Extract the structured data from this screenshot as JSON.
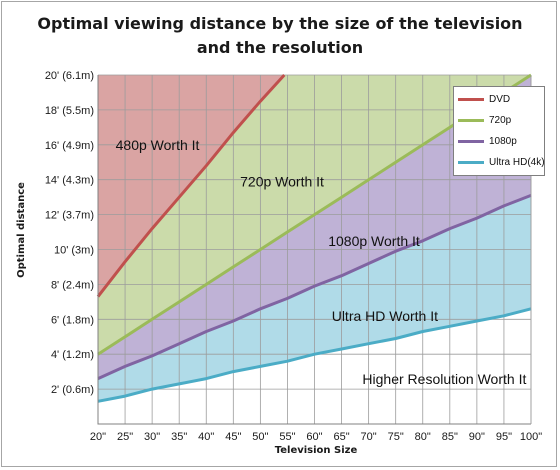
{
  "chart_data": {
    "type": "area",
    "title_line1": "Optimal viewing distance by the size of the television",
    "title_line2": "and the resolution",
    "xlabel": "Television  Size",
    "ylabel": "Optimal distance",
    "x_ticks": [
      "20\"",
      "25\"",
      "30\"",
      "35\"",
      "40\"",
      "45\"",
      "50\"",
      "55\"",
      "60\"",
      "65\"",
      "70\"",
      "75\"",
      "80\"",
      "85\"",
      "90\"",
      "95\"",
      "100\""
    ],
    "x": [
      20,
      25,
      30,
      35,
      40,
      45,
      50,
      55,
      60,
      65,
      70,
      75,
      80,
      85,
      90,
      95,
      100
    ],
    "xlim": [
      20,
      100
    ],
    "y_ticks": [
      "2' (0.6m)",
      "4' (1.2m)",
      "6' (1.8m)",
      "8' (2.4m)",
      "10' (3m)",
      "12' (3.7m)",
      "14' (4.3m)",
      "16' (4.9m)",
      "18' (5.5m)",
      "20' (6.1m)"
    ],
    "ylim": [
      0,
      20
    ],
    "series": [
      {
        "name": "DVD",
        "color": "#c0504d",
        "fill": "#daa4a3",
        "values": [
          7.3,
          9.3,
          11.2,
          13.0,
          14.8,
          16.7,
          18.5,
          20.2,
          null,
          null,
          null,
          null,
          null,
          null,
          null,
          null,
          null
        ]
      },
      {
        "name": "720p",
        "color": "#9bbb59",
        "fill": "#cbdbaa",
        "values": [
          4.0,
          5.0,
          6.0,
          7.0,
          8.0,
          9.0,
          10.0,
          11.0,
          12.0,
          13.0,
          14.0,
          15.0,
          16.0,
          17.0,
          18.0,
          19.0,
          20.0
        ]
      },
      {
        "name": "1080p",
        "color": "#8064a2",
        "fill": "#bfb2d6",
        "values": [
          2.6,
          3.3,
          3.9,
          4.6,
          5.3,
          5.9,
          6.6,
          7.2,
          7.9,
          8.5,
          9.2,
          9.9,
          10.5,
          11.2,
          11.8,
          12.5,
          13.1
        ]
      },
      {
        "name": "Ultra HD(4k)",
        "color": "#4bacc6",
        "fill": "#b0dbe8",
        "values": [
          1.3,
          1.6,
          2.0,
          2.3,
          2.6,
          3.0,
          3.3,
          3.6,
          4.0,
          4.3,
          4.6,
          4.9,
          5.3,
          5.6,
          5.9,
          6.2,
          6.6
        ]
      }
    ],
    "region_labels": [
      {
        "text": "480p Worth It",
        "x": 31,
        "y": 15.7
      },
      {
        "text": "720p Worth It",
        "x": 54,
        "y": 13.6
      },
      {
        "text": "1080p Worth It",
        "x": 71,
        "y": 10.2
      },
      {
        "text": "Ultra HD Worth It",
        "x": 73,
        "y": 5.9
      },
      {
        "text": "Higher Resolution Worth It",
        "x": 84,
        "y": 2.3
      }
    ],
    "grid": true,
    "legend_position": "top-right"
  }
}
